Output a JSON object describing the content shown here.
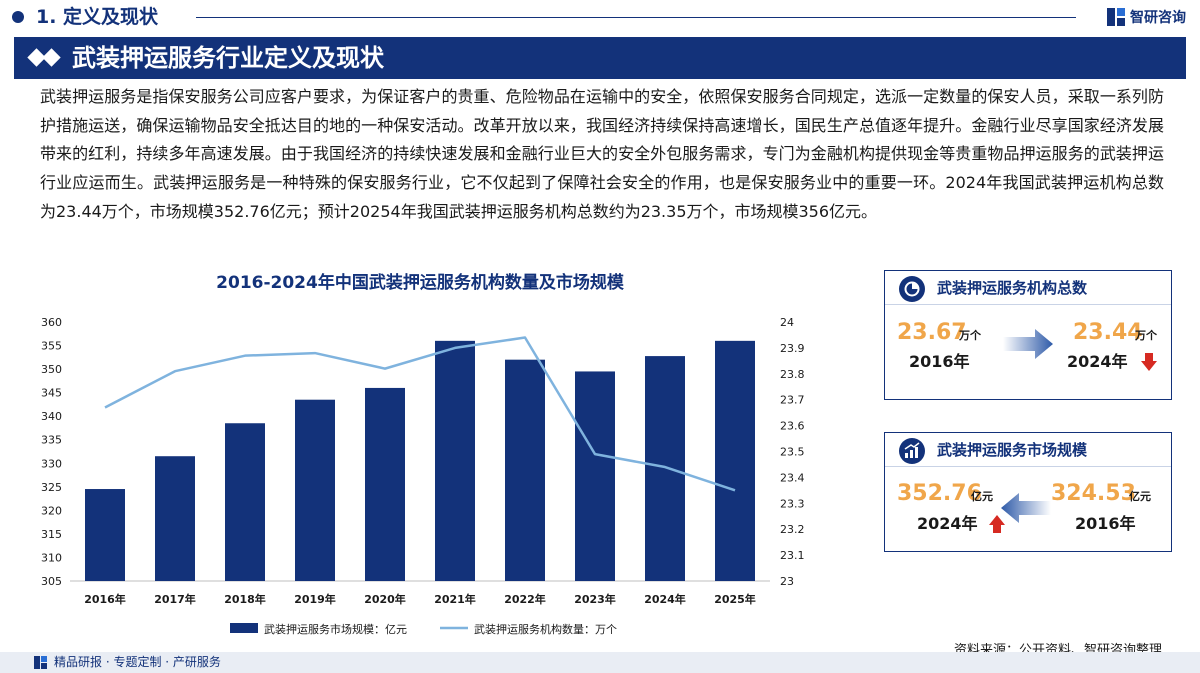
{
  "header": {
    "section_label": "1. 定义及现状",
    "brand": "智研咨询"
  },
  "banner": {
    "title": "武装押运服务行业定义及现状"
  },
  "intro": "武装押运服务是指保安服务公司应客户要求，为保证客户的贵重、危险物品在运输中的安全，依照保安服务合同规定，选派一定数量的保安人员，采取一系列防护措施运送，确保运输物品安全抵达目的地的一种保安活动。改革开放以来，我国经济持续保持高速增长，国民生产总值逐年提升。金融行业尽享国家经济发展带来的红利，持续多年高速发展。由于我国经济的持续快速发展和金融行业巨大的安全外包服务需求，专门为金融机构提供现金等贵重物品押运服务的武装押运行业应运而生。武装押运服务是一种特殊的保安服务行业，它不仅起到了保障社会安全的作用，也是保安服务业中的重要一环。2024年我国武装押运机构总数为23.44万个，市场规模352.76亿元；预计20254年我国武装押运服务机构总数约为23.35万个，市场规模356亿元。",
  "chart_data": {
    "type": "bar",
    "title": "2016-2024年中国武装押运服务机构数量及市场规模",
    "categories": [
      "2016年",
      "2017年",
      "2018年",
      "2019年",
      "2020年",
      "2021年",
      "2022年",
      "2023年",
      "2024年",
      "2025年"
    ],
    "series": [
      {
        "name": "武装押运服务市场规模：亿元",
        "type": "bar",
        "axis": "left",
        "color": "#13327a",
        "values": [
          324.53,
          331.5,
          338.5,
          343.5,
          346.0,
          356.0,
          352.0,
          349.5,
          352.76,
          356.0
        ]
      },
      {
        "name": "武装押运服务机构数量：万个",
        "type": "line",
        "axis": "right",
        "color": "#7fb3de",
        "values": [
          23.67,
          23.81,
          23.87,
          23.88,
          23.82,
          23.9,
          23.94,
          23.49,
          23.44,
          23.35
        ]
      }
    ],
    "y_left": {
      "min": 305,
      "max": 360,
      "ticks": [
        305,
        310,
        315,
        320,
        325,
        330,
        335,
        340,
        345,
        350,
        355,
        360
      ]
    },
    "y_right": {
      "min": 23,
      "max": 24,
      "ticks": [
        "23",
        "23.1",
        "23.2",
        "23.3",
        "23.4",
        "23.5",
        "23.6",
        "23.7",
        "23.8",
        "23.9",
        "24"
      ]
    },
    "legend_position": "bottom",
    "grid": false
  },
  "card_institutions": {
    "title": "武装押运服务机构总数",
    "left_value": "23.67",
    "left_unit": "万个",
    "left_year": "2016年",
    "right_value": "23.44",
    "right_unit": "万个",
    "right_year": "2024年",
    "trend": "down",
    "trend_color": "#d62a22"
  },
  "card_market": {
    "title": "武装押运服务市场规模",
    "left_value": "352.76",
    "left_unit": "亿元",
    "left_year": "2024年",
    "right_value": "324.53",
    "right_unit": "亿元",
    "right_year": "2016年",
    "trend": "up",
    "trend_color": "#d62a22"
  },
  "source": "资料来源：公开资料、智研咨询整理",
  "footer": "精品研报 · 专题定制 · 产研服务",
  "colors": {
    "primary": "#13327a",
    "value_orange": "#f0a64a",
    "line_blue": "#7fb3de",
    "arrow_red": "#d62a22"
  }
}
